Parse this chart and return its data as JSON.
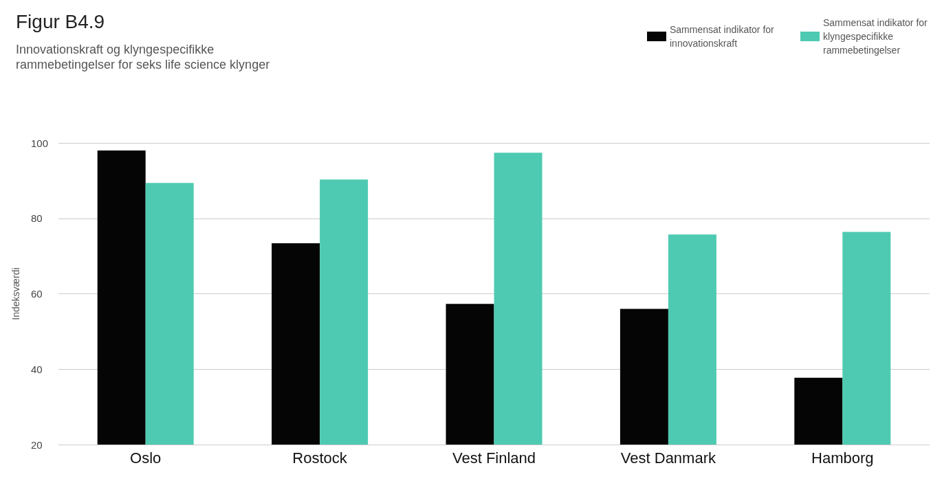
{
  "chart_data": {
    "type": "bar",
    "title": "Figur B4.9",
    "subtitle": "Innovationskraft og klyngespecifikke\nrammebetingelser for seks life science klynger",
    "ylabel": "Indeksværdi",
    "categories": [
      "Oslo",
      "Rostock",
      "Vest Finland",
      "Vest Danmark",
      "Hamborg"
    ],
    "series": [
      {
        "name": "Sammensat indikator for innovationskraft",
        "color": "#050505",
        "values": [
          98,
          73.4,
          57.3,
          56,
          37.7
        ]
      },
      {
        "name": "Sammensat indikator for klyngespecifikke rammebetingelser",
        "color": "#4ecab2",
        "values": [
          89.4,
          90.3,
          97.4,
          75.7,
          76.4
        ]
      }
    ],
    "ylim": [
      20,
      100
    ],
    "yticks": [
      20,
      40,
      60,
      80,
      100
    ],
    "grid": "y",
    "legend": "top right"
  }
}
